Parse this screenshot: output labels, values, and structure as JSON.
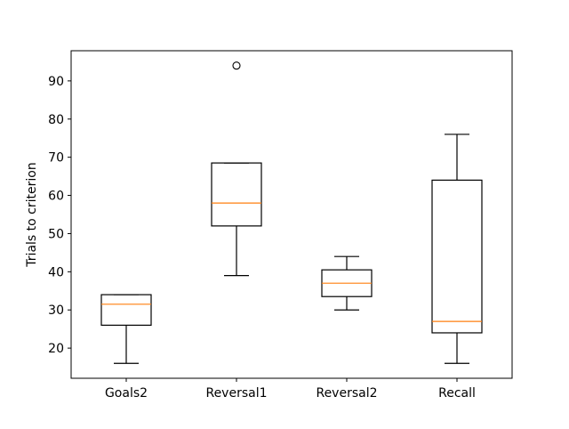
{
  "chart_data": {
    "type": "box",
    "title": "",
    "xlabel": "",
    "ylabel": "Trials to criterion",
    "ylim": [
      12.1,
      97.9
    ],
    "yticks": [
      20,
      30,
      40,
      50,
      60,
      70,
      80,
      90
    ],
    "grid": false,
    "categories": [
      "Goals2",
      "Reversal1",
      "Reversal2",
      "Recall"
    ],
    "boxes": [
      {
        "label": "Goals2",
        "whisker_low": 16,
        "q1": 26,
        "median": 31.5,
        "q3": 34,
        "whisker_high": 34,
        "outliers": []
      },
      {
        "label": "Reversal1",
        "whisker_low": 39,
        "q1": 52,
        "median": 58,
        "q3": 68.5,
        "whisker_high": 68.5,
        "outliers": [
          94
        ]
      },
      {
        "label": "Reversal2",
        "whisker_low": 30,
        "q1": 33.5,
        "median": 37,
        "q3": 40.5,
        "whisker_high": 44,
        "outliers": []
      },
      {
        "label": "Recall",
        "whisker_low": 16,
        "q1": 24,
        "median": 27,
        "q3": 64,
        "whisker_high": 76,
        "outliers": []
      }
    ],
    "colors": {
      "box": "#000000",
      "median": "#ff7f0e",
      "outlier": "#000000"
    }
  }
}
